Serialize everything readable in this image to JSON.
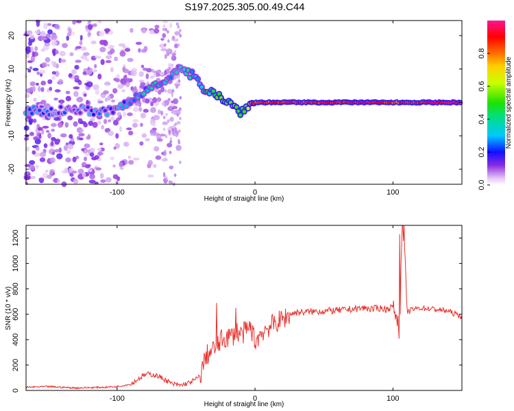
{
  "title": "S197.2025.305.00.49.C44",
  "chart_data": [
    {
      "type": "heatmap",
      "title": "S197.2025.305.00.49.C44",
      "xlabel": "Height of straight line (km)",
      "ylabel": "Frequency (Hz)",
      "xlim": [
        -166,
        150
      ],
      "ylim": [
        -24.5,
        24.5
      ],
      "xticks": [
        -100,
        0,
        100
      ],
      "yticks": [
        -20,
        -10,
        0,
        10,
        20
      ],
      "colorbar": {
        "label": "Normalized spectral amplitude",
        "range": [
          0,
          1
        ],
        "ticks": [
          "0.0",
          "0.2",
          "0.4",
          "0.6",
          "0.8"
        ],
        "tick_values": [
          0,
          0.2,
          0.4,
          0.6,
          0.8
        ]
      },
      "ridge": {
        "name": "dominant frequency",
        "x": [
          -166,
          -150,
          -130,
          -110,
          -100,
          -90,
          -85,
          -80,
          -75,
          -70,
          -65,
          -60,
          -55,
          -45,
          -40,
          -35,
          -30,
          -25,
          -20,
          -15,
          -12,
          -5,
          0,
          20,
          50,
          98,
          102,
          150
        ],
        "freq": [
          -2,
          -3,
          -2,
          -3,
          -2,
          0,
          2,
          3,
          5,
          6,
          7,
          8,
          10,
          8,
          5,
          4,
          3,
          2,
          0,
          -1,
          -3,
          -1,
          0,
          0,
          0,
          0,
          0,
          0
        ],
        "amplitude": [
          0.25,
          0.2,
          0.2,
          0.22,
          0.25,
          0.3,
          0.3,
          0.3,
          0.32,
          0.32,
          0.3,
          0.3,
          0.28,
          0.35,
          0.35,
          0.4,
          0.45,
          0.5,
          0.55,
          0.55,
          0.5,
          0.6,
          0.85,
          0.9,
          0.9,
          0.92,
          0.85,
          0.95
        ]
      }
    },
    {
      "type": "line",
      "xlabel": "Height of straight line (km)",
      "ylabel": "SNR (10 * v/v)",
      "xlim": [
        -166,
        150
      ],
      "ylim": [
        0,
        1300
      ],
      "xticks": [
        -100,
        0,
        100
      ],
      "yticks": [
        0,
        200,
        400,
        600,
        800,
        1000,
        1200
      ],
      "series": [
        {
          "name": "SNR",
          "color": "#e8302c",
          "x": [
            -166,
            -150,
            -130,
            -110,
            -100,
            -90,
            -82,
            -78,
            -72,
            -66,
            -60,
            -54,
            -48,
            -44,
            -40,
            -37,
            -35,
            -32,
            -28,
            -24,
            -20,
            -16,
            -14,
            -10,
            -6,
            -3,
            0,
            3,
            6,
            10,
            15,
            20,
            25,
            30,
            40,
            50,
            60,
            70,
            80,
            85,
            90,
            95,
            100,
            102,
            104,
            105,
            106,
            107,
            108,
            110,
            115,
            120,
            130,
            140,
            150
          ],
          "y": [
            25,
            30,
            20,
            25,
            30,
            50,
            110,
            130,
            120,
            90,
            50,
            40,
            60,
            80,
            110,
            220,
            280,
            300,
            350,
            400,
            420,
            430,
            470,
            440,
            470,
            500,
            380,
            430,
            470,
            500,
            530,
            560,
            600,
            615,
            620,
            625,
            630,
            640,
            650,
            640,
            650,
            640,
            660,
            600,
            520,
            360,
            1210,
            900,
            1300,
            620,
            640,
            650,
            640,
            625,
            580
          ]
        }
      ],
      "annotations": [
        {
          "type": "spike",
          "x": -28,
          "y": 690
        },
        {
          "type": "spike",
          "x": -14,
          "y": 650
        },
        {
          "type": "spike",
          "x": 105,
          "y": 1230
        },
        {
          "type": "spike",
          "x": 107,
          "y": 1300
        }
      ]
    }
  ]
}
